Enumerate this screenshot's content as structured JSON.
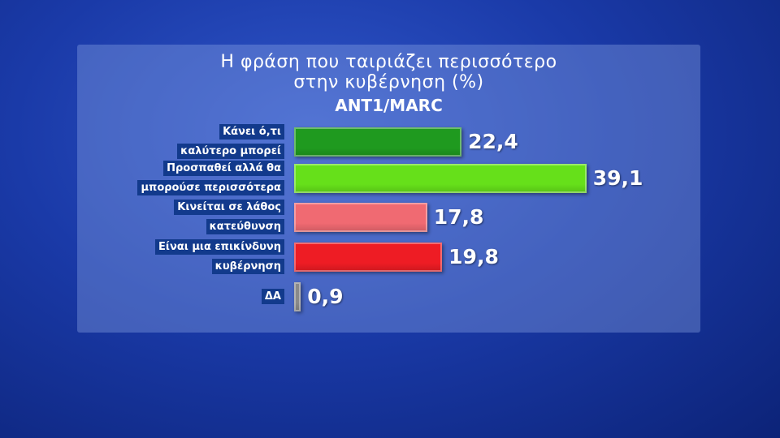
{
  "chart_data": {
    "type": "bar",
    "orientation": "horizontal",
    "title": "Η φράση που ταιριάζει περισσότερο\nστην κυβέρνηση (%)",
    "subtitle": "ANT1/MARC",
    "categories": [
      "Κάνει ό,τι\nκαλύτερο μπορεί",
      "Προσπαθεί αλλά θα\nμπορούσε περισσότερα",
      "Κινείται σε λάθος\nκατεύθυνση",
      "Είναι μια επικίνδυνη\nκυβέρνηση",
      "ΔΑ"
    ],
    "values": [
      22.4,
      39.1,
      17.8,
      19.8,
      0.9
    ],
    "value_labels": [
      "22,4",
      "39,1",
      "17,8",
      "19,8",
      "0,9"
    ],
    "colors": [
      "#1f9a1f",
      "#66e01a",
      "#f06a72",
      "#ee1c24",
      "#8a8a8a"
    ]
  }
}
